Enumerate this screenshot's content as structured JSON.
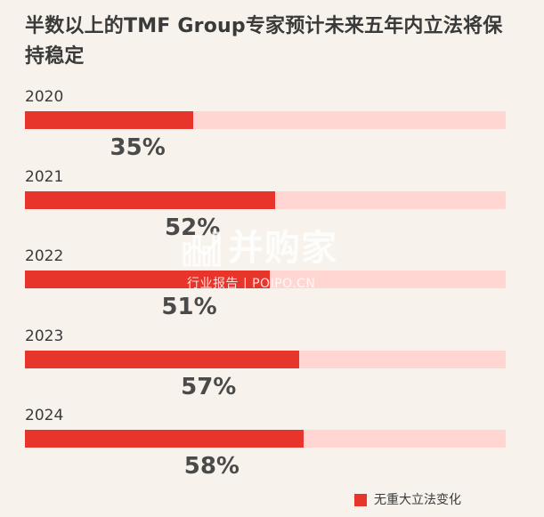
{
  "chart_data": {
    "type": "bar",
    "title": "半数以上的TMF Group专家预计未来五年内立法将保持稳定",
    "categories": [
      "2020",
      "2021",
      "2022",
      "2023",
      "2024"
    ],
    "series": [
      {
        "name": "无重大立法变化",
        "values": [
          35,
          52,
          51,
          57,
          58
        ],
        "value_labels": [
          "35%",
          "52%",
          "51%",
          "57%",
          "58%"
        ],
        "color": "#e8352b"
      }
    ],
    "ylim": [
      0,
      100
    ],
    "track_color": "#ffd6d2",
    "orientation": "horizontal",
    "legend_position": "bottom-right",
    "grid": false
  },
  "watermark": {
    "brand": "并购家",
    "tagline": "行业报告 | POIPO.CN"
  }
}
